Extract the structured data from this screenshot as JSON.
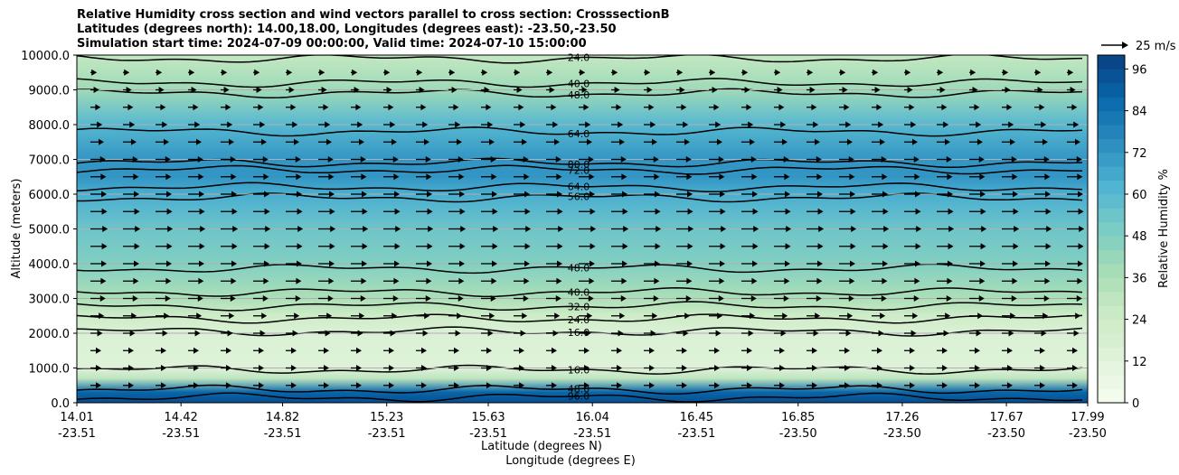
{
  "header": {
    "title_line1": "Relative Humidity cross section and wind vectors parallel to cross section: CrosssectionB",
    "title_line2": "Latitudes (degrees north): 14.00,18.00, Longitudes (degrees east): -23.50,-23.50",
    "title_line3": "Simulation start time: 2024-07-09 00:00:00, Valid time: 2024-07-10 15:00:00"
  },
  "chart_data": {
    "type": "heatmap",
    "subtype": "filled contour cross section with quiver wind vectors",
    "ylabel": "Altitude (meters)",
    "xlabel_line1": "Latitude (degrees N)",
    "xlabel_line2": "Longitude (degrees E)",
    "ylim": [
      0,
      10000
    ],
    "y_ticks": [
      "0.0",
      "1000.0",
      "2000.0",
      "3000.0",
      "4000.0",
      "5000.0",
      "6000.0",
      "7000.0",
      "8000.0",
      "9000.0",
      "10000.0"
    ],
    "y_tick_values": [
      0,
      1000,
      2000,
      3000,
      4000,
      5000,
      6000,
      7000,
      8000,
      9000,
      10000
    ],
    "x_ticks_lat": [
      "14.01",
      "14.42",
      "14.82",
      "15.23",
      "15.63",
      "16.04",
      "16.45",
      "16.85",
      "17.26",
      "17.67",
      "17.99"
    ],
    "x_ticks_lon": [
      "-23.51",
      "-23.51",
      "-23.51",
      "-23.51",
      "-23.51",
      "-23.51",
      "-23.51",
      "-23.50",
      "-23.50",
      "-23.50",
      "-23.50"
    ],
    "grid": "horizontal",
    "colorbar": {
      "label": "Relative Humidity %",
      "ticks": [
        "0",
        "12",
        "24",
        "36",
        "48",
        "60",
        "72",
        "84",
        "96"
      ],
      "tick_values": [
        0,
        12,
        24,
        36,
        48,
        60,
        72,
        84,
        96
      ],
      "range": [
        0,
        100
      ],
      "levels": 25
    },
    "quiver_key": {
      "label": "25 m/s",
      "speed": 25
    },
    "rh_profile": [
      {
        "altitude": 0,
        "rh": 96
      },
      {
        "altitude": 300,
        "rh": 88
      },
      {
        "altitude": 700,
        "rh": 30
      },
      {
        "altitude": 1000,
        "rh": 14
      },
      {
        "altitude": 2000,
        "rh": 16
      },
      {
        "altitude": 2500,
        "rh": 24
      },
      {
        "altitude": 3000,
        "rh": 36
      },
      {
        "altitude": 4000,
        "rh": 48
      },
      {
        "altitude": 5000,
        "rh": 54
      },
      {
        "altitude": 6000,
        "rh": 64
      },
      {
        "altitude": 6500,
        "rh": 72
      },
      {
        "altitude": 7000,
        "rh": 72
      },
      {
        "altitude": 8000,
        "rh": 60
      },
      {
        "altitude": 9000,
        "rh": 40
      },
      {
        "altitude": 10000,
        "rh": 28
      }
    ],
    "contour_lines": [
      {
        "label": "96.0",
        "altitude": 150
      },
      {
        "label": "48.0",
        "altitude": 380
      },
      {
        "label": "16.0",
        "altitude": 950
      },
      {
        "label": "16.0",
        "altitude": 2050
      },
      {
        "label": "24.0",
        "altitude": 2420
      },
      {
        "label": "32.0",
        "altitude": 2780
      },
      {
        "label": "40.0",
        "altitude": 3180
      },
      {
        "label": "48.0",
        "altitude": 3860
      },
      {
        "label": "56.0",
        "altitude": 5900
      },
      {
        "label": "64.0",
        "altitude": 6200
      },
      {
        "label": "72.0",
        "altitude": 6700
      },
      {
        "label": "80.0",
        "altitude": 6900
      },
      {
        "label": "64.0",
        "altitude": 7800
      },
      {
        "label": "48.0",
        "altitude": 8900
      },
      {
        "label": "40.0",
        "altitude": 9200
      },
      {
        "label": "24.0",
        "altitude": 9900
      }
    ],
    "wind_speed_ms": [
      {
        "altitude": 500,
        "u": 10
      },
      {
        "altitude": 1500,
        "u": 10
      },
      {
        "altitude": 3000,
        "u": 14
      },
      {
        "altitude": 5000,
        "u": 16
      },
      {
        "altitude": 7000,
        "u": 14
      },
      {
        "altitude": 9000,
        "u": 8
      },
      {
        "altitude": 10000,
        "u": 4
      }
    ]
  }
}
